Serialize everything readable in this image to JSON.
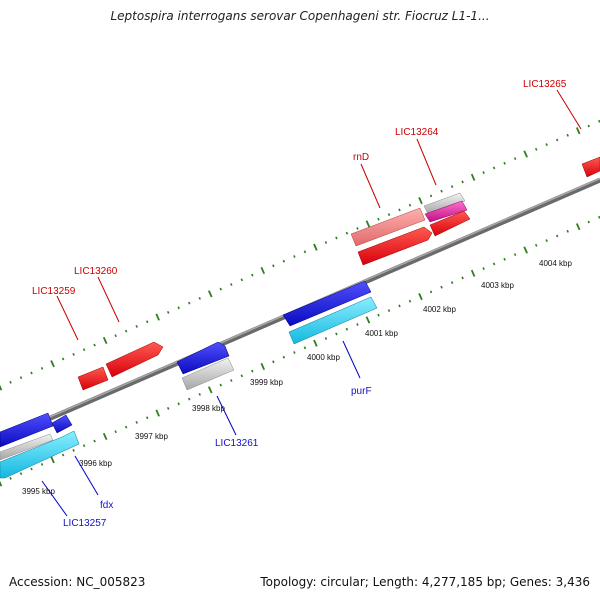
{
  "title": "Leptospira interrogans serovar Copenhageni str. Fiocruz L1-1...",
  "footer": {
    "accession": "Accession: NC_005823",
    "topology": "Topology: circular; Length: 4,277,185 bp; Genes: 3,436"
  },
  "colors": {
    "backbone": "#7a7a7a",
    "tick": "#2e7d1e",
    "forward_gene": "#e8141c",
    "forward_label": "#cc0000",
    "reverse_gene": "#1a1adb",
    "reverse_label": "#1010cc",
    "cyan_gene": "#26d0f0",
    "grey_gene": "#c8c8c8",
    "pink_gene": "#ee8888",
    "magenta_gene": "#e0209a"
  },
  "scale_labels": [
    "3995 kbp",
    "3996 kbp",
    "3997 kbp",
    "3998 kbp",
    "3999 kbp",
    "4000 kbp",
    "4001 kbp",
    "4002 kbp",
    "4003 kbp",
    "4004 kbp"
  ],
  "forward_gene_labels": [
    "LIC13259",
    "LIC13260",
    "rnD",
    "LIC13264",
    "LIC13265"
  ],
  "reverse_gene_labels": [
    "LIC13257",
    "fdx",
    "LIC13261",
    "purF"
  ]
}
